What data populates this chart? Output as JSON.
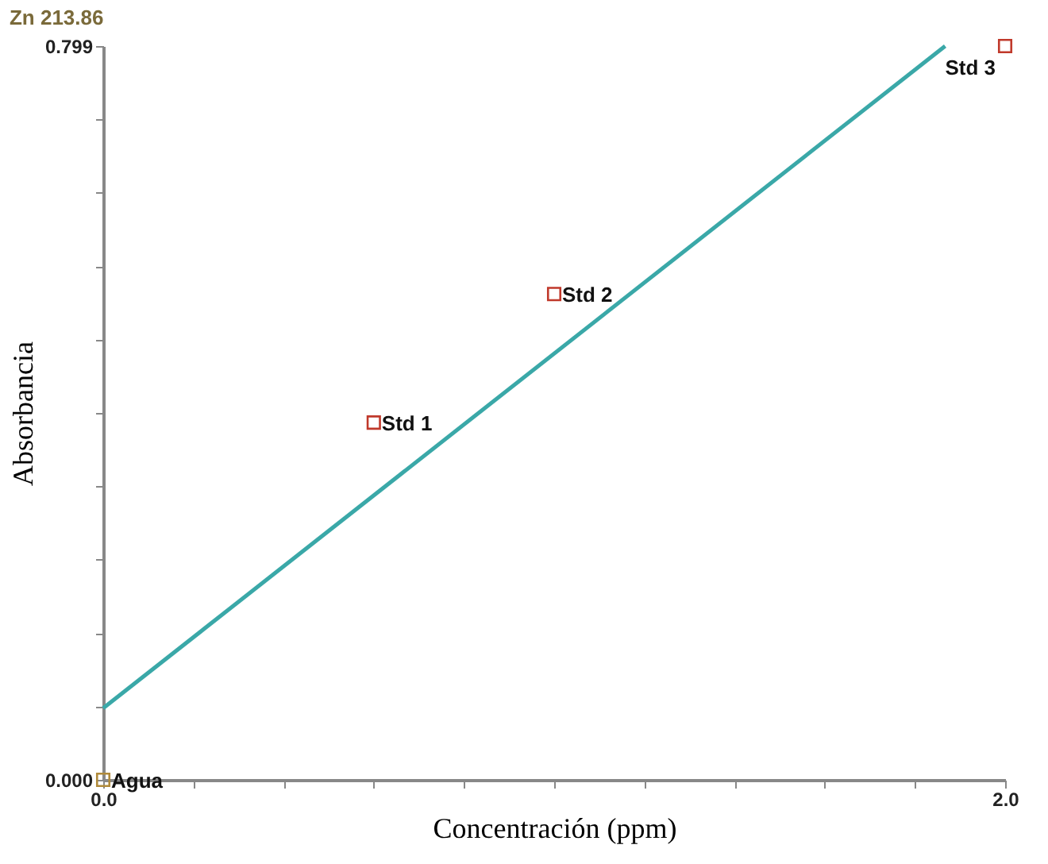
{
  "chart_data": {
    "type": "scatter",
    "title": "Zn 213.86",
    "xlabel": "Concentración (ppm)",
    "ylabel": "Absorbancia",
    "xlim": [
      0,
      2.0
    ],
    "ylim": [
      0,
      0.799
    ],
    "xticks": [
      {
        "value": 0,
        "label": "0.0"
      },
      {
        "value": 0.2,
        "label": null
      },
      {
        "value": 0.4,
        "label": null
      },
      {
        "value": 0.6,
        "label": null
      },
      {
        "value": 0.8,
        "label": null
      },
      {
        "value": 1.0,
        "label": null
      },
      {
        "value": 1.2,
        "label": null
      },
      {
        "value": 1.4,
        "label": null
      },
      {
        "value": 1.6,
        "label": null
      },
      {
        "value": 1.8,
        "label": null
      },
      {
        "value": 2.0,
        "label": "2.0"
      }
    ],
    "yticks": [
      {
        "value": 0,
        "label": "0.000"
      },
      {
        "value": 0.0799,
        "label": null
      },
      {
        "value": 0.1598,
        "label": null
      },
      {
        "value": 0.2397,
        "label": null
      },
      {
        "value": 0.3196,
        "label": null
      },
      {
        "value": 0.3995,
        "label": null
      },
      {
        "value": 0.4794,
        "label": null
      },
      {
        "value": 0.5593,
        "label": null
      },
      {
        "value": 0.6392,
        "label": null
      },
      {
        "value": 0.7191,
        "label": null
      },
      0.799
    ],
    "grid": false,
    "legend": false,
    "series": [
      {
        "type": "scatter",
        "marker": "square",
        "x": [
          0,
          0.6,
          1.0,
          2.0
        ],
        "values": [
          0,
          0.389,
          0.529,
          0.799
        ],
        "colors": [
          "#b08a3a",
          "#c0392b",
          "#c0392b",
          "#c0392b"
        ]
      },
      {
        "type": "line",
        "line_style": "solid",
        "marker": "none",
        "color": "#3aa8a8",
        "x": [
          0,
          1.867
        ],
        "values": [
          0.078,
          0.799
        ]
      }
    ],
    "annotations": [
      {
        "text": "Agua",
        "x": 0,
        "y": 0
      },
      {
        "text": "Std 1",
        "x": 0.6,
        "y": 0.389
      },
      {
        "text": "Std 2",
        "x": 1.0,
        "y": 0.529
      },
      {
        "text": "Std 3",
        "x": 2.0,
        "y": 0.799
      }
    ]
  }
}
